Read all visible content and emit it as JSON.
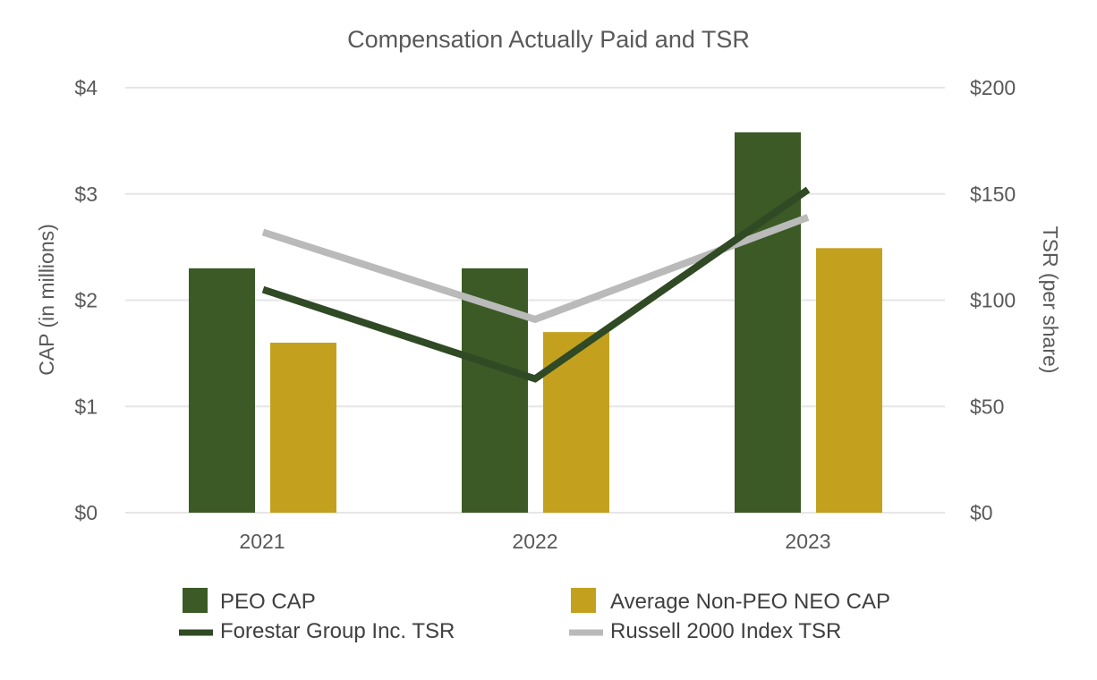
{
  "chart_data": {
    "type": "bar",
    "title": "Compensation Actually Paid and TSR",
    "categories": [
      "2021",
      "2022",
      "2023"
    ],
    "y_left": {
      "label": "CAP (in millions)",
      "range": [
        0,
        4
      ],
      "ticks": [
        "$0",
        "$1",
        "$2",
        "$3",
        "$4"
      ]
    },
    "y_right": {
      "label": "TSR (per share)",
      "range": [
        0,
        200
      ],
      "ticks": [
        "$0",
        "$50",
        "$100",
        "$150",
        "$200"
      ]
    },
    "grid": true,
    "legend_position": "bottom",
    "bar_series": [
      {
        "name": "PEO CAP",
        "values": [
          2.3,
          2.3,
          3.58
        ],
        "color": "#3b5a25",
        "axis": "left"
      },
      {
        "name": "Average Non-PEO NEO CAP",
        "values": [
          1.6,
          1.7,
          2.49
        ],
        "color": "#c3a11f",
        "axis": "left"
      }
    ],
    "line_series": [
      {
        "name": "Forestar Group Inc. TSR",
        "values": [
          105,
          63,
          152
        ],
        "color": "#2f4a24",
        "axis": "right"
      },
      {
        "name": "Russell 2000 Index TSR",
        "values": [
          132,
          91,
          139
        ],
        "color": "#bababa",
        "axis": "right"
      }
    ]
  }
}
